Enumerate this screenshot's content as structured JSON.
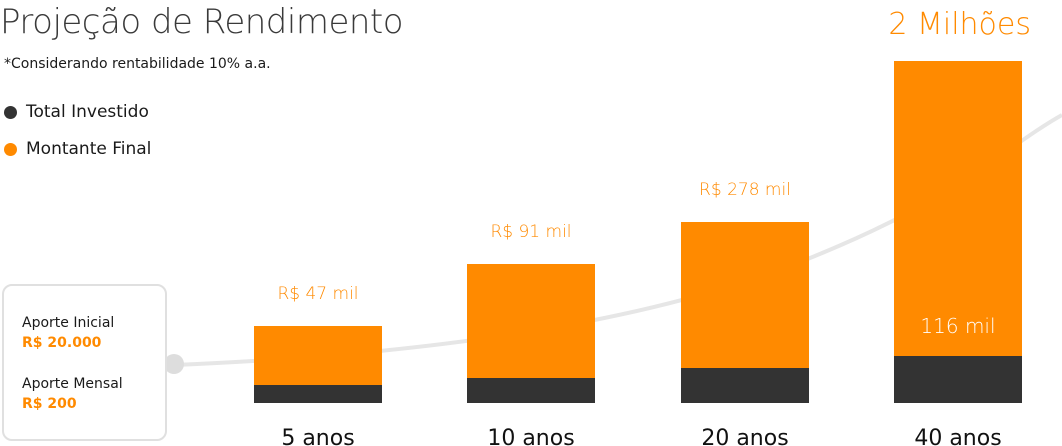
{
  "colors": {
    "invested": "#333333",
    "final": "#FF8A00",
    "curve": "#e6e6e6"
  },
  "chart_data": {
    "type": "bar",
    "title": "Projeção de Rendimento",
    "subtitle": "*Considerando rentabilidade 10% a.a.",
    "categories": [
      "5 anos",
      "10 anos",
      "20 anos",
      "40 anos"
    ],
    "series": [
      {
        "name": "Total Investido",
        "values": [
          32,
          44,
          68,
          116
        ],
        "unit": "mil"
      },
      {
        "name": "Montante Final",
        "values": [
          47,
          91,
          278,
          2000
        ],
        "unit": "mil"
      }
    ],
    "data_labels": {
      "final": [
        "R$ 47 mil",
        "R$ 91 mil",
        "R$ 278 mil",
        "2 Milhões"
      ],
      "invested": [
        "",
        "",
        "",
        "116 mil"
      ]
    },
    "legend": {
      "placement": "top-left",
      "entries": [
        "Total Investido",
        "Montante Final"
      ]
    },
    "scale": "nonlinear",
    "grid": false
  },
  "info": {
    "initial_label": "Aporte Inicial",
    "initial_value": "R$ 20.000",
    "monthly_label": "Aporte Mensal",
    "monthly_value": "R$ 200"
  }
}
